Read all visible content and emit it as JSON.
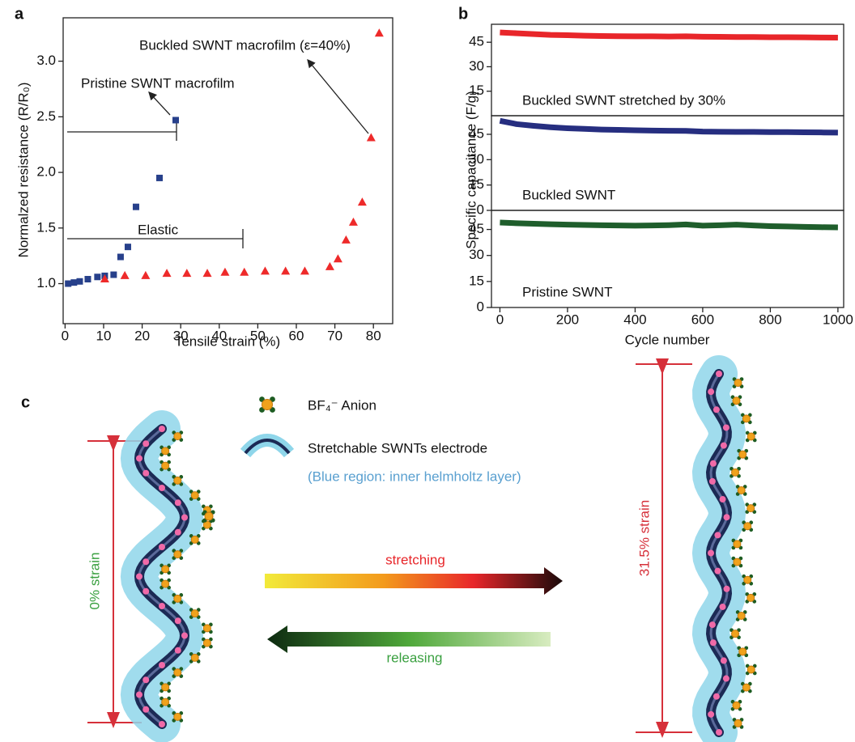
{
  "chart_data": [
    {
      "type": "scatter",
      "panel": "a",
      "xlabel": "Tensile strain (%)",
      "ylabel": "Normalzed resistance (R/R₀)",
      "annotations": [
        "Buckled SWNT macrofilm (ε=40%)",
        "Pristine SWNT macrofilm",
        "Elastic"
      ],
      "xlim": [
        -0.5,
        85
      ],
      "xticks": [
        0,
        10,
        20,
        30,
        40,
        50,
        60,
        70,
        80
      ],
      "ylim": [
        0.64,
        3.39
      ],
      "yticks": [
        {
          "value": 1,
          "label": "1.0"
        },
        {
          "value": 1.5,
          "label": "1.5"
        },
        {
          "value": 2,
          "label": "2.0"
        },
        {
          "value": 2.5,
          "label": "2.5"
        },
        {
          "value": 3,
          "label": "3.0"
        }
      ],
      "series": [
        {
          "marker": "square",
          "color": "#27408b",
          "x": [
            0.8,
            2.3,
            3.8,
            5.9,
            8.4,
            10.3,
            12.6,
            14.4,
            16.3,
            18.4,
            24.5,
            28.7
          ],
          "values": [
            1.0,
            1.01,
            1.02,
            1.04,
            1.06,
            1.07,
            1.08,
            1.24,
            1.33,
            1.69,
            1.95,
            2.47
          ]
        },
        {
          "marker": "triangle",
          "color": "#ee2a2a",
          "x": [
            10.3,
            15.5,
            20.9,
            26.4,
            31.6,
            36.9,
            41.5,
            46.5,
            51.9,
            57.2,
            62.2,
            68.7,
            70.8,
            72.9,
            74.8,
            77.1,
            79.4,
            81.5
          ],
          "values": [
            1.04,
            1.07,
            1.07,
            1.09,
            1.09,
            1.09,
            1.1,
            1.1,
            1.11,
            1.11,
            1.11,
            1.15,
            1.22,
            1.39,
            1.55,
            1.73,
            2.31,
            3.25
          ]
        }
      ]
    },
    {
      "type": "line",
      "panel": "b",
      "label": "Buckled SWNT stretched by 30%",
      "ylabel": "Specific capacitance (F/g)",
      "xlim": [
        -25,
        1017
      ],
      "ylim": [
        0,
        56
      ],
      "yticks": [
        15,
        30,
        45
      ],
      "color": "#e8262a",
      "x": [
        0,
        50,
        100,
        150,
        200,
        250,
        300,
        350,
        400,
        450,
        500,
        550,
        600,
        650,
        700,
        750,
        800,
        850,
        900,
        950,
        1000
      ],
      "values": [
        51,
        50.5,
        50,
        49.5,
        49.3,
        49,
        48.8,
        48.7,
        48.6,
        48.6,
        48.5,
        48.6,
        48.4,
        48.3,
        48.2,
        48.2,
        48.1,
        48.1,
        48.0,
        47.9,
        47.8
      ]
    },
    {
      "type": "line",
      "label": "Buckled SWNT",
      "xlim": [
        -25,
        1017
      ],
      "ylim": [
        0,
        56
      ],
      "yticks": [
        0,
        15,
        30,
        45
      ],
      "color": "#262e80",
      "x": [
        0,
        50,
        100,
        150,
        200,
        250,
        300,
        350,
        400,
        450,
        500,
        550,
        600,
        650,
        700,
        750,
        800,
        850,
        900,
        950,
        1000
      ],
      "values": [
        53,
        51,
        50,
        49.2,
        48.6,
        48.2,
        47.8,
        47.6,
        47.4,
        47.2,
        47.1,
        47.0,
        46.6,
        46.5,
        46.4,
        46.4,
        46.3,
        46.3,
        46.2,
        46.1,
        46.0
      ]
    },
    {
      "type": "line",
      "label": "Pristine SWNT",
      "xlabel": "Cycle number",
      "xlim": [
        -25,
        1017
      ],
      "ylim": [
        0,
        56
      ],
      "yticks": [
        0,
        15,
        30,
        45
      ],
      "color": "#1f5e2c",
      "xticks": [
        0,
        200,
        400,
        600,
        800,
        1000
      ],
      "x": [
        0,
        50,
        100,
        150,
        200,
        250,
        300,
        350,
        400,
        450,
        500,
        550,
        600,
        650,
        700,
        750,
        800,
        850,
        900,
        950,
        1000
      ],
      "values": [
        49,
        48.6,
        48.3,
        48.0,
        47.8,
        47.6,
        47.4,
        47.3,
        47.2,
        47.3,
        47.5,
        47.9,
        47.2,
        47.4,
        47.8,
        47.3,
        46.9,
        46.7,
        46.5,
        46.3,
        46.2
      ]
    }
  ],
  "diagram": {
    "panel": "c",
    "legend": [
      "BF₄⁻ Anion",
      "Stretchable SWNTs electrode"
    ],
    "note": "(Blue region: inner helmholtz layer)",
    "left_strain": "0% strain",
    "right_strain": "31.5% strain",
    "forward": "stretching",
    "backward": "releasing"
  }
}
